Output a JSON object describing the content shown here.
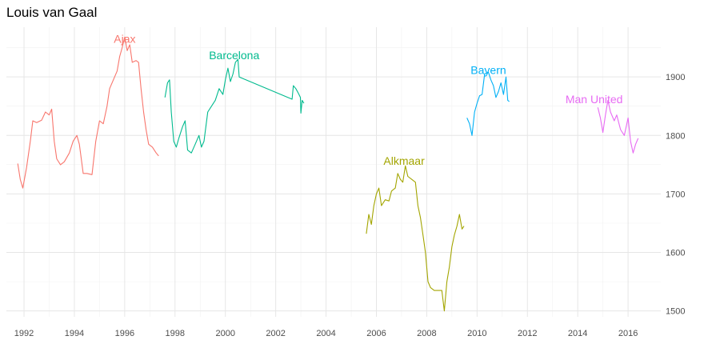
{
  "chart_data": {
    "type": "line",
    "title": "Louis van Gaal",
    "xlabel": "",
    "ylabel": "",
    "xlim": [
      1991.3,
      2017.3
    ],
    "ylim": [
      1490,
      1985
    ],
    "x_ticks": [
      "1992",
      "1994",
      "1996",
      "1998",
      "2000",
      "2002",
      "2004",
      "2006",
      "2008",
      "2010",
      "2012",
      "2014",
      "2016"
    ],
    "y_ticks": [
      "1500",
      "1600",
      "1700",
      "1800",
      "1900"
    ],
    "y_axis_position": "right",
    "grid": true,
    "legend": "none",
    "series": [
      {
        "name": "Ajax",
        "color": "#F8766D",
        "label_at": [
          1996.0,
          1958
        ],
        "points": [
          [
            1991.75,
            1752
          ],
          [
            1991.85,
            1725
          ],
          [
            1991.95,
            1710
          ],
          [
            1992.1,
            1745
          ],
          [
            1992.25,
            1790
          ],
          [
            1992.35,
            1825
          ],
          [
            1992.5,
            1822
          ],
          [
            1992.7,
            1826
          ],
          [
            1992.85,
            1840
          ],
          [
            1993.0,
            1835
          ],
          [
            1993.1,
            1845
          ],
          [
            1993.2,
            1790
          ],
          [
            1993.3,
            1760
          ],
          [
            1993.45,
            1750
          ],
          [
            1993.6,
            1755
          ],
          [
            1993.8,
            1770
          ],
          [
            1993.95,
            1790
          ],
          [
            1994.1,
            1800
          ],
          [
            1994.2,
            1785
          ],
          [
            1994.35,
            1735
          ],
          [
            1994.5,
            1735
          ],
          [
            1994.7,
            1733
          ],
          [
            1994.85,
            1790
          ],
          [
            1995.0,
            1825
          ],
          [
            1995.15,
            1820
          ],
          [
            1995.3,
            1850
          ],
          [
            1995.4,
            1880
          ],
          [
            1995.55,
            1895
          ],
          [
            1995.7,
            1910
          ],
          [
            1995.8,
            1935
          ],
          [
            1995.9,
            1950
          ],
          [
            1996.0,
            1968
          ],
          [
            1996.1,
            1945
          ],
          [
            1996.2,
            1955
          ],
          [
            1996.3,
            1925
          ],
          [
            1996.45,
            1928
          ],
          [
            1996.55,
            1925
          ],
          [
            1996.65,
            1880
          ],
          [
            1996.75,
            1840
          ],
          [
            1996.85,
            1810
          ],
          [
            1996.95,
            1785
          ],
          [
            1997.1,
            1780
          ],
          [
            1997.25,
            1770
          ],
          [
            1997.35,
            1765
          ]
        ]
      },
      {
        "name": "Barcelona",
        "color": "#00BA8E",
        "label_at": [
          2000.35,
          1930
        ],
        "points": [
          [
            1997.6,
            1865
          ],
          [
            1997.7,
            1890
          ],
          [
            1997.78,
            1895
          ],
          [
            1997.85,
            1840
          ],
          [
            1997.95,
            1790
          ],
          [
            1998.05,
            1780
          ],
          [
            1998.15,
            1795
          ],
          [
            1998.3,
            1815
          ],
          [
            1998.4,
            1825
          ],
          [
            1998.5,
            1775
          ],
          [
            1998.65,
            1770
          ],
          [
            1998.8,
            1785
          ],
          [
            1998.95,
            1800
          ],
          [
            1999.05,
            1780
          ],
          [
            1999.15,
            1790
          ],
          [
            1999.3,
            1840
          ],
          [
            1999.45,
            1850
          ],
          [
            1999.6,
            1860
          ],
          [
            1999.75,
            1880
          ],
          [
            1999.9,
            1870
          ],
          [
            2000.0,
            1895
          ],
          [
            2000.1,
            1915
          ],
          [
            2000.2,
            1892
          ],
          [
            2000.3,
            1905
          ],
          [
            2000.4,
            1925
          ],
          [
            2000.5,
            1930
          ],
          [
            2000.55,
            1900
          ],
          [
            2002.65,
            1862
          ],
          [
            2002.7,
            1885
          ],
          [
            2002.8,
            1880
          ],
          [
            2002.9,
            1872
          ],
          [
            2002.98,
            1865
          ],
          [
            2003.0,
            1838
          ],
          [
            2003.05,
            1860
          ],
          [
            2003.12,
            1855
          ]
        ]
      },
      {
        "name": "Alkmaar",
        "color": "#A3A500",
        "label_at": [
          2007.1,
          1750
        ],
        "points": [
          [
            2005.6,
            1632
          ],
          [
            2005.7,
            1665
          ],
          [
            2005.8,
            1648
          ],
          [
            2005.9,
            1680
          ],
          [
            2006.0,
            1700
          ],
          [
            2006.1,
            1710
          ],
          [
            2006.2,
            1680
          ],
          [
            2006.35,
            1690
          ],
          [
            2006.5,
            1688
          ],
          [
            2006.6,
            1705
          ],
          [
            2006.75,
            1710
          ],
          [
            2006.85,
            1735
          ],
          [
            2006.95,
            1725
          ],
          [
            2007.05,
            1720
          ],
          [
            2007.15,
            1748
          ],
          [
            2007.25,
            1730
          ],
          [
            2007.4,
            1725
          ],
          [
            2007.55,
            1720
          ],
          [
            2007.65,
            1680
          ],
          [
            2007.75,
            1660
          ],
          [
            2007.85,
            1630
          ],
          [
            2007.95,
            1600
          ],
          [
            2008.05,
            1550
          ],
          [
            2008.15,
            1540
          ],
          [
            2008.3,
            1535
          ],
          [
            2008.45,
            1535
          ],
          [
            2008.6,
            1535
          ],
          [
            2008.7,
            1500
          ],
          [
            2008.8,
            1550
          ],
          [
            2008.9,
            1575
          ],
          [
            2009.0,
            1610
          ],
          [
            2009.1,
            1630
          ],
          [
            2009.2,
            1645
          ],
          [
            2009.3,
            1665
          ],
          [
            2009.4,
            1640
          ],
          [
            2009.48,
            1645
          ]
        ]
      },
      {
        "name": "Bayern",
        "color": "#00B0F6",
        "label_at": [
          2010.45,
          1905
        ],
        "points": [
          [
            2009.6,
            1830
          ],
          [
            2009.7,
            1820
          ],
          [
            2009.8,
            1800
          ],
          [
            2009.9,
            1840
          ],
          [
            2010.0,
            1855
          ],
          [
            2010.1,
            1868
          ],
          [
            2010.2,
            1870
          ],
          [
            2010.3,
            1905
          ],
          [
            2010.45,
            1908
          ],
          [
            2010.55,
            1895
          ],
          [
            2010.65,
            1885
          ],
          [
            2010.75,
            1865
          ],
          [
            2010.85,
            1875
          ],
          [
            2010.95,
            1890
          ],
          [
            2011.05,
            1870
          ],
          [
            2011.15,
            1900
          ],
          [
            2011.22,
            1860
          ],
          [
            2011.28,
            1858
          ]
        ]
      },
      {
        "name": "Man United",
        "color": "#E76BF3",
        "label_at": [
          2014.65,
          1855
        ],
        "points": [
          [
            2014.8,
            1848
          ],
          [
            2014.9,
            1830
          ],
          [
            2015.0,
            1805
          ],
          [
            2015.1,
            1835
          ],
          [
            2015.2,
            1860
          ],
          [
            2015.3,
            1840
          ],
          [
            2015.45,
            1825
          ],
          [
            2015.55,
            1835
          ],
          [
            2015.7,
            1810
          ],
          [
            2015.85,
            1800
          ],
          [
            2016.0,
            1830
          ],
          [
            2016.1,
            1790
          ],
          [
            2016.2,
            1770
          ],
          [
            2016.3,
            1785
          ],
          [
            2016.4,
            1795
          ]
        ]
      }
    ]
  }
}
